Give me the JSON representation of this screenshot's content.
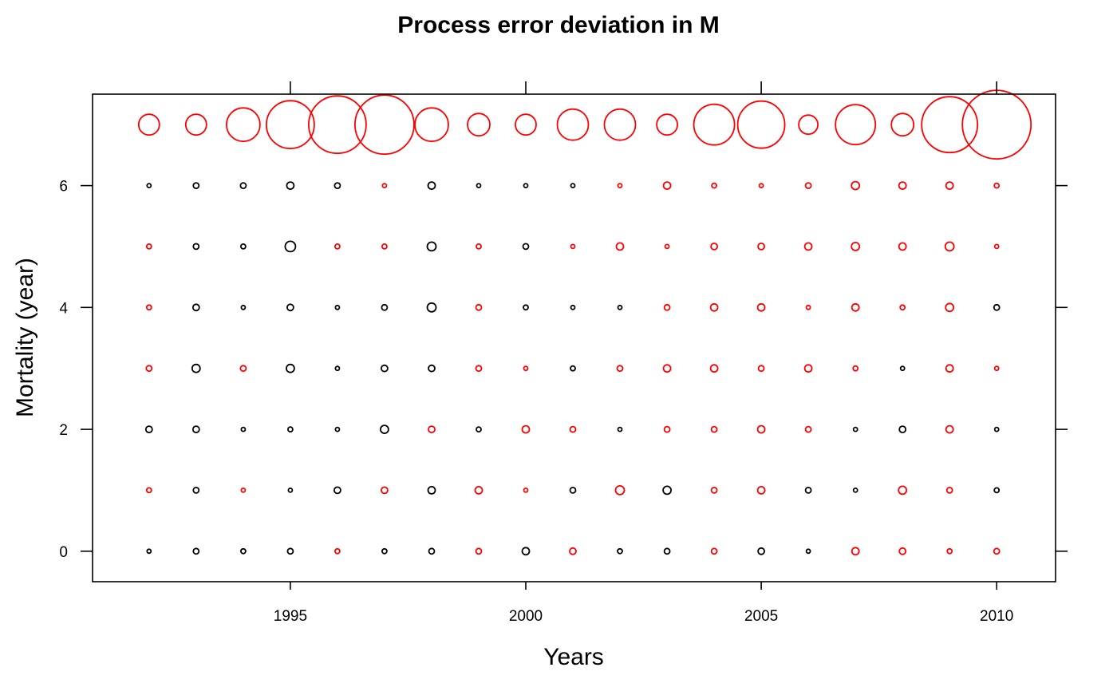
{
  "chart_data": {
    "type": "scatter",
    "title": "Process error deviation in M",
    "xlabel": "Years",
    "ylabel": "Mortality (year)",
    "xlim": [
      1990.8,
      2011.25
    ],
    "ylim": [
      -0.5,
      7.5
    ],
    "xticks": [
      1995,
      2000,
      2005,
      2010
    ],
    "yticks": [
      0,
      2,
      4,
      6
    ],
    "grid": false,
    "legend": "none",
    "colors": {
      "positive": "#ff0000",
      "negative": "#000000"
    },
    "years": [
      1992,
      1993,
      1994,
      1995,
      1996,
      1997,
      1998,
      1999,
      2000,
      2001,
      2002,
      2003,
      2004,
      2005,
      2006,
      2007,
      2008,
      2009,
      2010
    ],
    "rows": [
      {
        "y": 0,
        "r": [
          2.5,
          3.5,
          3,
          3.5,
          3,
          3,
          3.5,
          3.5,
          4.5,
          4,
          3,
          3.5,
          3.5,
          4,
          2.5,
          4.5,
          4,
          3,
          3.5
        ],
        "s": [
          "n",
          "n",
          "n",
          "n",
          "p",
          "n",
          "n",
          "p",
          "n",
          "p",
          "n",
          "n",
          "p",
          "n",
          "n",
          "p",
          "p",
          "p",
          "p"
        ]
      },
      {
        "y": 1,
        "r": [
          3,
          3.5,
          2.5,
          2.5,
          4,
          4,
          4.5,
          4.5,
          2.5,
          3.5,
          5.5,
          5,
          3.5,
          4.5,
          3.5,
          2.5,
          5,
          3.5,
          3
        ],
        "s": [
          "p",
          "n",
          "p",
          "n",
          "n",
          "p",
          "n",
          "p",
          "p",
          "n",
          "p",
          "n",
          "p",
          "p",
          "n",
          "n",
          "p",
          "p",
          "n"
        ]
      },
      {
        "y": 2,
        "r": [
          4,
          4,
          2.5,
          3,
          2.5,
          5,
          4,
          3,
          4.5,
          3.5,
          2.5,
          3.5,
          3.5,
          4.5,
          3.5,
          2.5,
          4,
          4.5,
          2.5
        ],
        "s": [
          "n",
          "n",
          "n",
          "n",
          "n",
          "n",
          "p",
          "n",
          "p",
          "p",
          "n",
          "p",
          "p",
          "p",
          "p",
          "n",
          "n",
          "p",
          "n"
        ]
      },
      {
        "y": 3,
        "r": [
          3.5,
          5,
          3.5,
          5,
          2.5,
          4,
          4,
          3.5,
          2.5,
          3,
          3.5,
          4.5,
          4.5,
          3.5,
          4.5,
          3,
          2.5,
          4.5,
          2.5
        ],
        "s": [
          "p",
          "n",
          "p",
          "n",
          "n",
          "n",
          "n",
          "p",
          "p",
          "n",
          "p",
          "p",
          "p",
          "p",
          "p",
          "p",
          "n",
          "p",
          "p"
        ]
      },
      {
        "y": 4,
        "r": [
          3,
          4,
          2.5,
          4,
          2.5,
          3.5,
          5.5,
          3.5,
          3,
          2.5,
          2.5,
          3.5,
          4.5,
          4.5,
          2.5,
          4.5,
          3,
          5,
          3.5
        ],
        "s": [
          "p",
          "n",
          "n",
          "n",
          "n",
          "n",
          "n",
          "p",
          "n",
          "n",
          "n",
          "p",
          "p",
          "p",
          "p",
          "p",
          "p",
          "p",
          "n"
        ]
      },
      {
        "y": 5,
        "r": [
          3,
          3.5,
          3,
          6.5,
          3,
          3,
          5.5,
          3,
          3.5,
          2.5,
          4.5,
          2.5,
          4,
          4,
          4.5,
          5,
          4.5,
          5.5,
          2.5
        ],
        "s": [
          "p",
          "n",
          "n",
          "n",
          "p",
          "p",
          "n",
          "p",
          "n",
          "p",
          "p",
          "p",
          "p",
          "p",
          "p",
          "p",
          "p",
          "p",
          "p"
        ]
      },
      {
        "y": 6,
        "r": [
          2.5,
          3.5,
          3.5,
          4.5,
          3.5,
          2.5,
          4.5,
          2.5,
          2.5,
          2.5,
          2.5,
          4.5,
          3,
          2.5,
          3.5,
          5,
          4.5,
          4.5,
          3
        ],
        "s": [
          "n",
          "n",
          "n",
          "n",
          "n",
          "p",
          "n",
          "n",
          "n",
          "n",
          "p",
          "p",
          "p",
          "p",
          "p",
          "p",
          "p",
          "p",
          "p"
        ]
      },
      {
        "y": 7,
        "r": [
          13,
          13,
          21,
          30,
          36,
          37,
          21,
          14,
          13,
          19.5,
          19.5,
          13,
          25.5,
          29.5,
          12,
          25,
          14,
          35,
          43
        ],
        "s": [
          "p",
          "p",
          "p",
          "p",
          "p",
          "p",
          "p",
          "p",
          "p",
          "p",
          "p",
          "p",
          "p",
          "p",
          "p",
          "p",
          "p",
          "p",
          "p"
        ]
      }
    ]
  }
}
